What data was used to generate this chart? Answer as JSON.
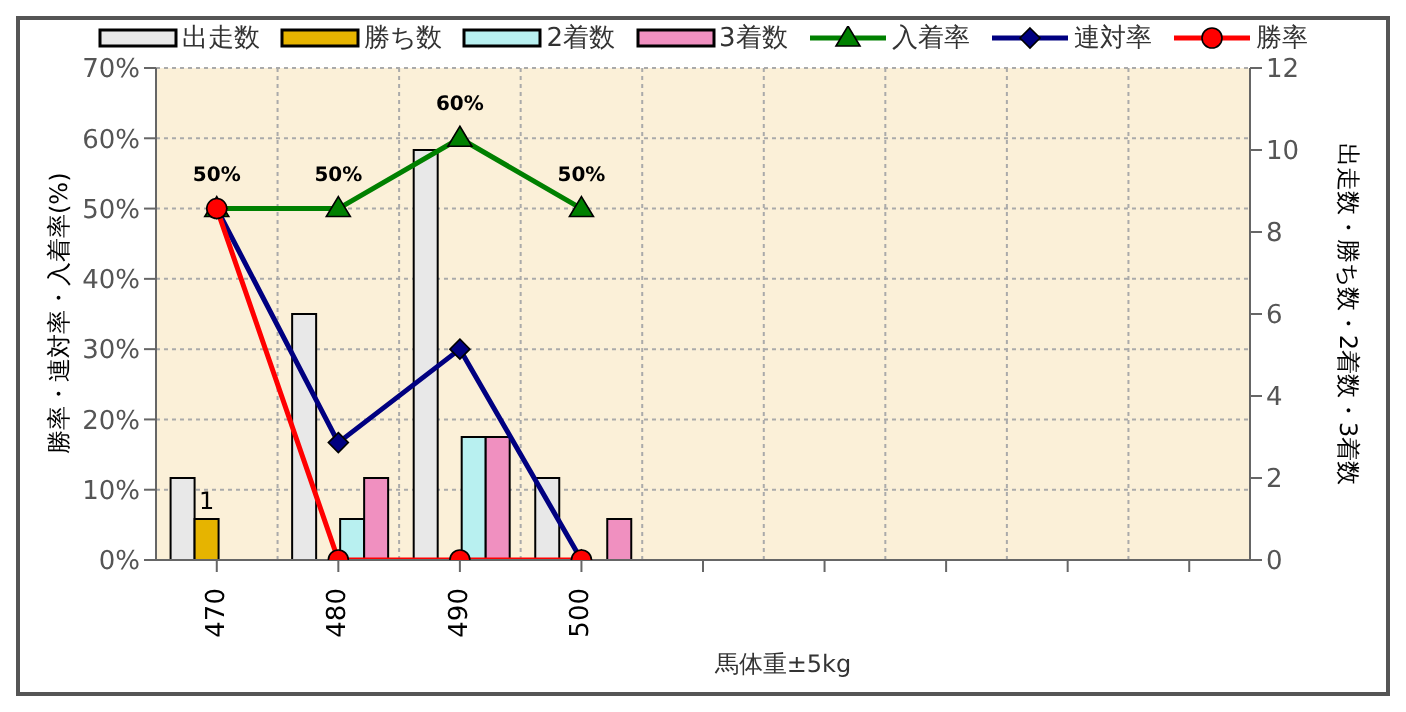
{
  "chart_data": {
    "type": "bar",
    "xlabel": "馬体重±5kg",
    "ylabel": "勝率・連対率・入着率(%)",
    "y2label": "出走数・勝ち数・2着数・3着数",
    "categories": [
      "470",
      "480",
      "490",
      "500",
      null,
      null,
      null,
      null,
      null
    ],
    "series": [
      {
        "name": "出走数",
        "axis": "y2",
        "color": "#e8e8e8",
        "values": [
          2,
          6,
          10,
          2,
          null,
          null,
          null,
          null,
          null
        ]
      },
      {
        "name": "勝ち数",
        "axis": "y2",
        "color": "#e6b400",
        "values": [
          1,
          0,
          0,
          0,
          null,
          null,
          null,
          null,
          null
        ],
        "value_labels": [
          "1",
          null,
          null,
          null,
          null,
          null,
          null,
          null,
          null
        ]
      },
      {
        "name": "2着数",
        "axis": "y2",
        "color": "#b8f0f0",
        "values": [
          0,
          1,
          3,
          0,
          null,
          null,
          null,
          null,
          null
        ]
      },
      {
        "name": "3着数",
        "axis": "y2",
        "color": "#f090c0",
        "values": [
          0,
          2,
          3,
          1,
          null,
          null,
          null,
          null,
          null
        ]
      },
      {
        "name": "入着率",
        "type": "line",
        "color": "#008000",
        "marker": "triangle",
        "values": [
          50,
          50,
          60,
          50,
          null,
          null,
          null,
          null,
          null
        ],
        "value_labels": [
          "50%",
          "50%",
          "60%",
          "50%",
          null,
          null,
          null,
          null,
          null
        ]
      },
      {
        "name": "連対率",
        "type": "line",
        "color": "#000080",
        "marker": "diamond",
        "values": [
          50,
          16.7,
          30,
          0,
          null,
          null,
          null,
          null,
          null
        ]
      },
      {
        "name": "勝率",
        "type": "line",
        "color": "#ff0000",
        "marker": "circle",
        "values": [
          50,
          0,
          0,
          0,
          null,
          null,
          null,
          null,
          null
        ]
      }
    ],
    "ylim": [
      0,
      70
    ],
    "yticks": [
      {
        "value": 0,
        "label": "0%"
      },
      {
        "value": 10,
        "label": "10%"
      },
      {
        "value": 20,
        "label": "20%"
      },
      {
        "value": 30,
        "label": "30%"
      },
      {
        "value": 40,
        "label": "40%"
      },
      {
        "value": 50,
        "label": "50%"
      },
      {
        "value": 60,
        "label": "60%"
      },
      {
        "value": 70,
        "label": "70%"
      }
    ],
    "y2lim": [
      0,
      12
    ],
    "y2ticks": [
      0,
      2,
      4,
      6,
      8,
      10,
      12
    ],
    "grid": true,
    "legend": "top"
  }
}
